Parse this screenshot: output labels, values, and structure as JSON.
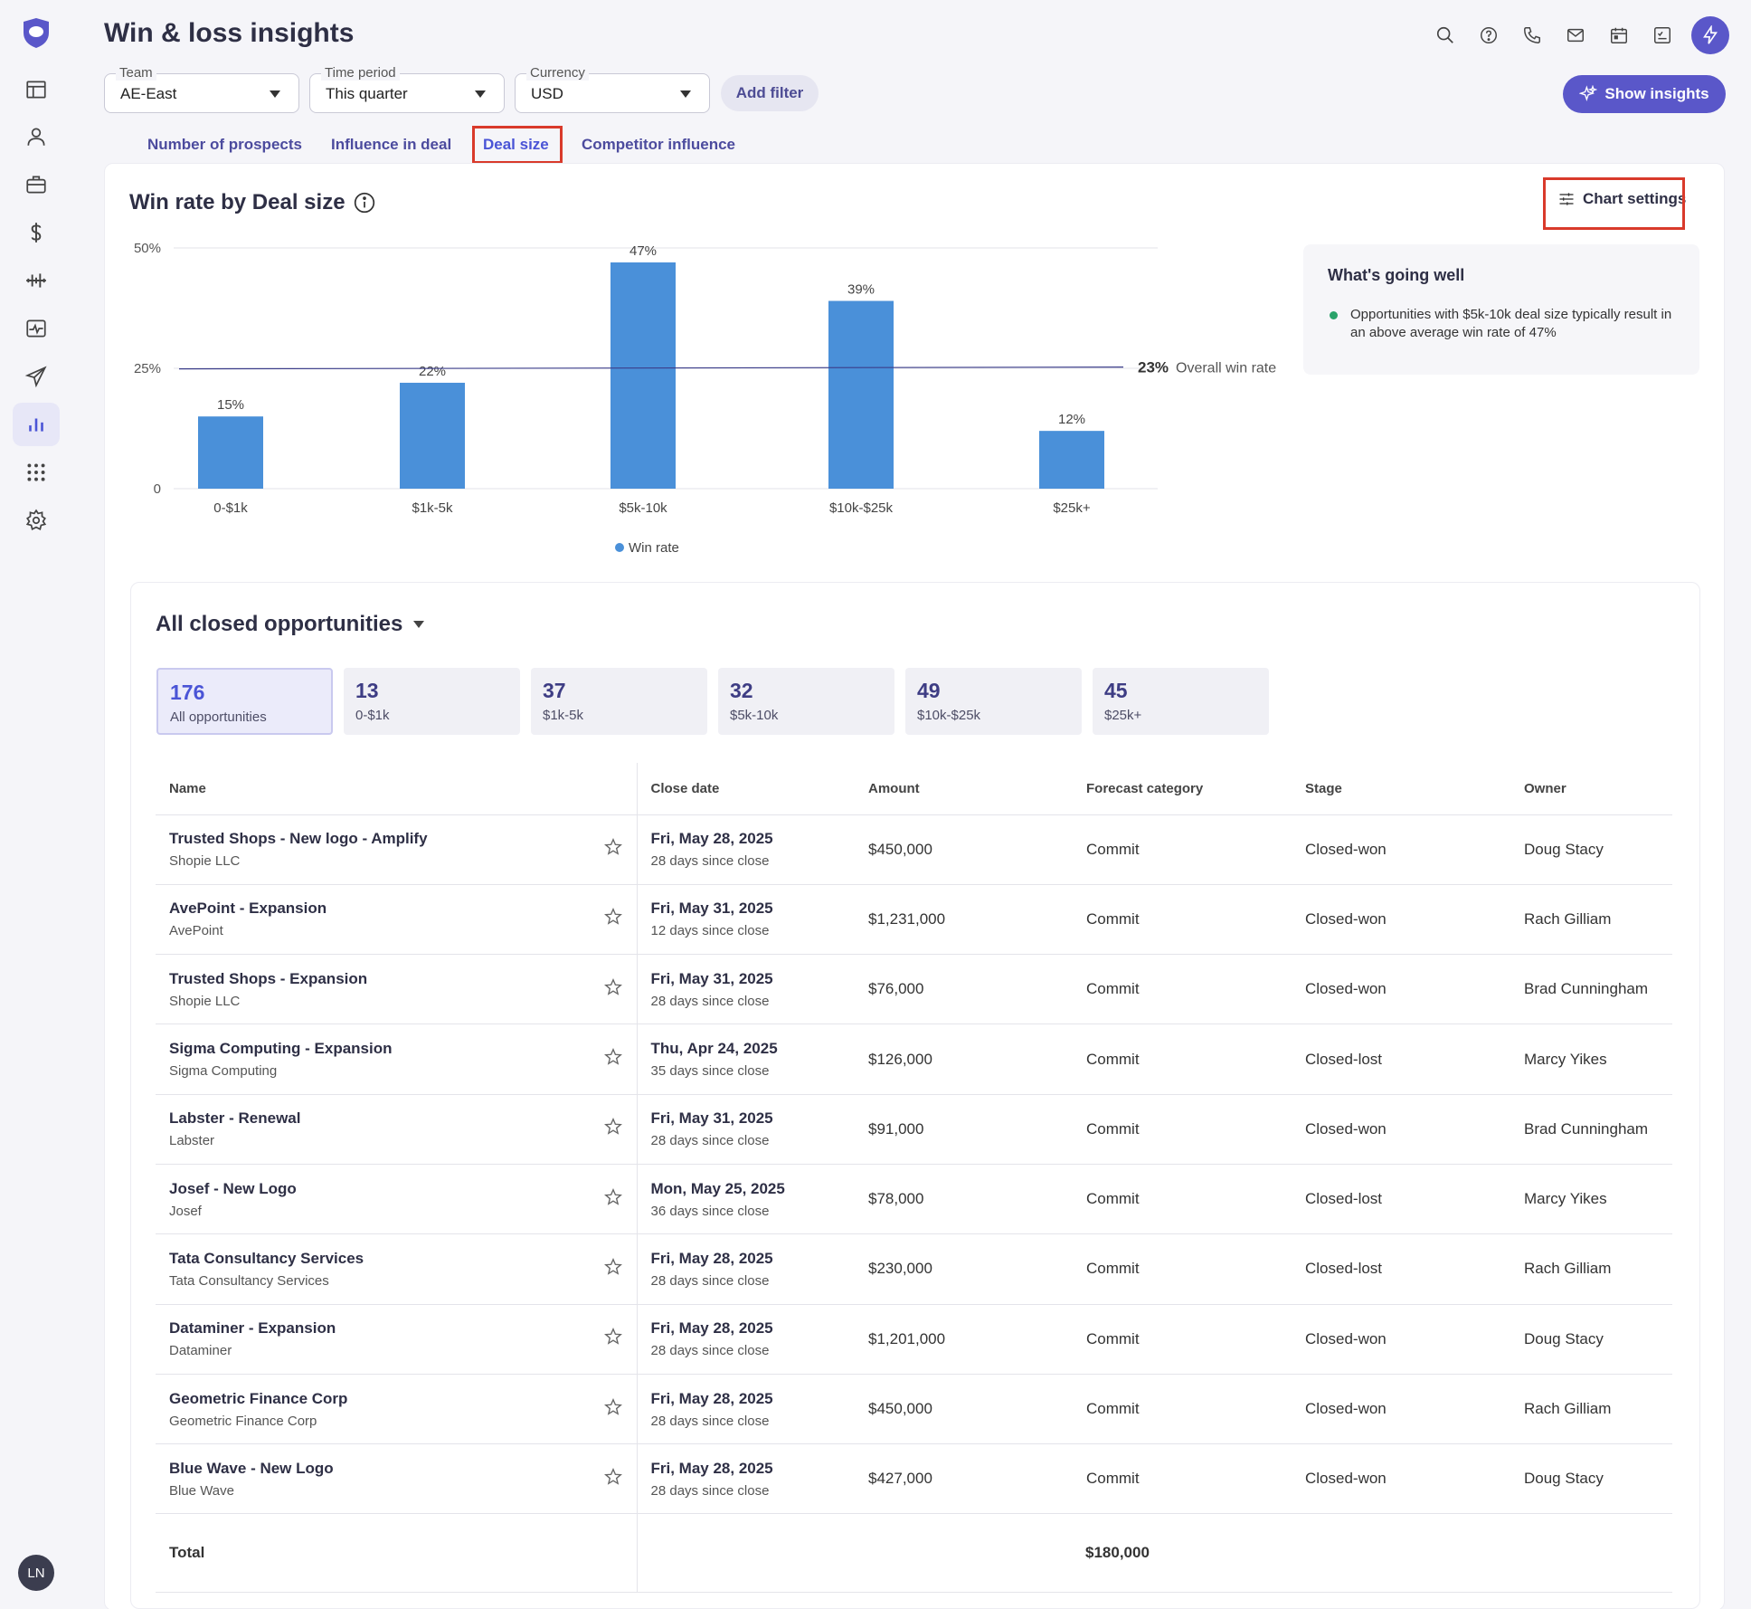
{
  "header": {
    "title": "Win & loss insights",
    "show_insights_label": "Show insights",
    "add_filter_label": "Add filter"
  },
  "filters": [
    {
      "label": "Team",
      "value": "AE-East"
    },
    {
      "label": "Time period",
      "value": "This quarter"
    },
    {
      "label": "Currency",
      "value": "USD"
    }
  ],
  "tabs": [
    {
      "label": "Number of prospects",
      "active": false
    },
    {
      "label": "Influence in deal",
      "active": false
    },
    {
      "label": "Deal size",
      "active": true
    },
    {
      "label": "Competitor influence",
      "active": false
    }
  ],
  "chart_section": {
    "title": "Win rate by Deal size",
    "settings_label": "Chart settings"
  },
  "chart_data": {
    "type": "bar",
    "categories": [
      "0-$1k",
      "$1k-5k",
      "$5k-10k",
      "$10k-$25k",
      "$25k+"
    ],
    "series": [
      {
        "name": "Win rate",
        "values": [
          15,
          22,
          47,
          39,
          12
        ]
      }
    ],
    "value_labels": [
      "15%",
      "22%",
      "47%",
      "39%",
      "12%"
    ],
    "y_ticks": [
      "0",
      "25%",
      "50%"
    ],
    "ylim": [
      0,
      50
    ],
    "reference_line": {
      "value": 23,
      "value_label": "23%",
      "label": "Overall win rate"
    },
    "legend": "Win rate",
    "bar_color": "#4a90d9"
  },
  "insight": {
    "title": "What's going well",
    "text": "Opportunities with $5k-10k deal size typically result in an above average win rate of 47%"
  },
  "opportunities": {
    "title": "All closed opportunities",
    "segments": [
      {
        "count": "176",
        "label": "All opportunities",
        "active": true
      },
      {
        "count": "13",
        "label": "0-$1k",
        "active": false
      },
      {
        "count": "37",
        "label": "$1k-5k",
        "active": false
      },
      {
        "count": "32",
        "label": "$5k-10k",
        "active": false
      },
      {
        "count": "49",
        "label": "$10k-$25k",
        "active": false
      },
      {
        "count": "45",
        "label": "$25k+",
        "active": false
      }
    ],
    "columns": [
      "Name",
      "Close date",
      "Amount",
      "Forecast category",
      "Stage",
      "Owner"
    ],
    "rows": [
      {
        "name": "Trusted Shops - New logo - Amplify",
        "account": "Shopie LLC",
        "date": "Fri, May 28, 2025",
        "since": "28 days since close",
        "amount": "$450,000",
        "forecast": "Commit",
        "stage": "Closed-won",
        "owner": "Doug Stacy"
      },
      {
        "name": "AvePoint - Expansion",
        "account": "AvePoint",
        "date": "Fri, May 31, 2025",
        "since": "12 days since close",
        "amount": "$1,231,000",
        "forecast": "Commit",
        "stage": "Closed-won",
        "owner": "Rach Gilliam"
      },
      {
        "name": "Trusted Shops - Expansion",
        "account": "Shopie LLC",
        "date": "Fri, May 31, 2025",
        "since": "28 days since close",
        "amount": "$76,000",
        "forecast": "Commit",
        "stage": "Closed-won",
        "owner": "Brad Cunningham"
      },
      {
        "name": "Sigma Computing - Expansion",
        "account": "Sigma Computing",
        "date": "Thu, Apr 24, 2025",
        "since": "35 days since close",
        "amount": "$126,000",
        "forecast": "Commit",
        "stage": "Closed-lost",
        "owner": "Marcy Yikes"
      },
      {
        "name": "Labster - Renewal",
        "account": "Labster",
        "date": "Fri, May 31, 2025",
        "since": "28 days since close",
        "amount": "$91,000",
        "forecast": "Commit",
        "stage": "Closed-won",
        "owner": "Brad Cunningham"
      },
      {
        "name": "Josef - New Logo",
        "account": "Josef",
        "date": "Mon, May 25, 2025",
        "since": "36 days since close",
        "amount": "$78,000",
        "forecast": "Commit",
        "stage": "Closed-lost",
        "owner": "Marcy Yikes"
      },
      {
        "name": "Tata Consultancy Services",
        "account": "Tata Consultancy Services",
        "date": "Fri, May 28, 2025",
        "since": "28 days since close",
        "amount": "$230,000",
        "forecast": "Commit",
        "stage": "Closed-lost",
        "owner": "Rach Gilliam"
      },
      {
        "name": "Dataminer - Expansion",
        "account": "Dataminer",
        "date": "Fri, May 28, 2025",
        "since": "28 days since close",
        "amount": "$1,201,000",
        "forecast": "Commit",
        "stage": "Closed-won",
        "owner": "Doug Stacy"
      },
      {
        "name": "Geometric Finance Corp",
        "account": "Geometric Finance Corp",
        "date": "Fri, May 28, 2025",
        "since": "28 days since close",
        "amount": "$450,000",
        "forecast": "Commit",
        "stage": "Closed-won",
        "owner": "Rach Gilliam"
      },
      {
        "name": "Blue Wave - New Logo",
        "account": "Blue Wave",
        "date": "Fri, May 28, 2025",
        "since": "28 days since close",
        "amount": "$427,000",
        "forecast": "Commit",
        "stage": "Closed-won",
        "owner": "Doug Stacy"
      }
    ],
    "total_label": "Total",
    "total_amount": "$180,000"
  },
  "user": {
    "initials": "LN"
  },
  "colors": {
    "accent": "#5a57c9",
    "highlight": "#d93a2b",
    "bar": "#4a90d9",
    "positive": "#2aa36a"
  }
}
